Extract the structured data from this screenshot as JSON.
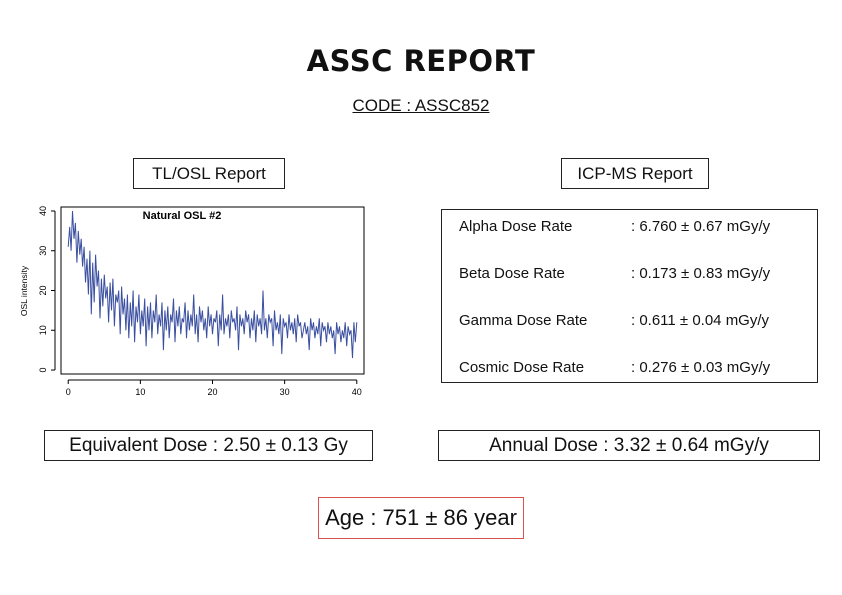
{
  "report": {
    "title": "ASSC REPORT",
    "code": "CODE : ASSC852"
  },
  "sections": {
    "tl_label": "TL/OSL Report",
    "icp_label": "ICP-MS Report"
  },
  "icp": {
    "rows": [
      {
        "label": "Alpha Dose Rate",
        "value": ": 6.760 ± 0.67 mGy/y"
      },
      {
        "label": "Beta Dose Rate",
        "value": ": 0.173 ± 0.83 mGy/y"
      },
      {
        "label": "Gamma Dose Rate",
        "value": ": 0.611 ± 0.04 mGy/y"
      },
      {
        "label": "Cosmic Dose Rate",
        "value": ": 0.276 ± 0.03 mGy/y"
      }
    ]
  },
  "results": {
    "equivalent_dose": "Equivalent Dose : 2.50 ± 0.13 Gy",
    "annual_dose": "Annual Dose : 3.32 ± 0.64 mGy/y",
    "age": "Age : 751 ± 86 year"
  },
  "colors": {
    "line": "#3a4fa0",
    "age_border": "#d9534f"
  },
  "chart_data": {
    "type": "line",
    "title": "Natural OSL #2",
    "xlabel": "",
    "ylabel": "OSL intensity",
    "xlim": [
      -1,
      41
    ],
    "ylim": [
      -1,
      41
    ],
    "xticks": [
      0,
      10,
      20,
      30,
      40
    ],
    "yticks": [
      0,
      10,
      20,
      30,
      40
    ],
    "grid": false,
    "series": [
      {
        "x": [
          0.0,
          0.2,
          0.4,
          0.6,
          0.8,
          1.0,
          1.2,
          1.4,
          1.6,
          1.8,
          2.0,
          2.2,
          2.4,
          2.6,
          2.8,
          3.0,
          3.2,
          3.4,
          3.6,
          3.8,
          4.0,
          4.2,
          4.4,
          4.6,
          4.8,
          5.0,
          5.2,
          5.4,
          5.6,
          5.8,
          6.0,
          6.2,
          6.4,
          6.6,
          6.8,
          7.0,
          7.2,
          7.4,
          7.6,
          7.8,
          8.0,
          8.2,
          8.4,
          8.6,
          8.8,
          9.0,
          9.2,
          9.4,
          9.6,
          9.8,
          10.0,
          10.2,
          10.4,
          10.6,
          10.8,
          11.0,
          11.2,
          11.4,
          11.6,
          11.8,
          12.0,
          12.2,
          12.4,
          12.6,
          12.8,
          13.0,
          13.2,
          13.4,
          13.6,
          13.8,
          14.0,
          14.2,
          14.4,
          14.6,
          14.8,
          15.0,
          15.2,
          15.4,
          15.6,
          15.8,
          16.0,
          16.2,
          16.4,
          16.6,
          16.8,
          17.0,
          17.2,
          17.4,
          17.6,
          17.8,
          18.0,
          18.2,
          18.4,
          18.6,
          18.8,
          19.0,
          19.2,
          19.4,
          19.6,
          19.8,
          20.0,
          20.2,
          20.4,
          20.6,
          20.8,
          21.0,
          21.2,
          21.4,
          21.6,
          21.8,
          22.0,
          22.2,
          22.4,
          22.6,
          22.8,
          23.0,
          23.2,
          23.4,
          23.6,
          23.8,
          24.0,
          24.2,
          24.4,
          24.6,
          24.8,
          25.0,
          25.2,
          25.4,
          25.6,
          25.8,
          26.0,
          26.2,
          26.4,
          26.6,
          26.8,
          27.0,
          27.2,
          27.4,
          27.6,
          27.8,
          28.0,
          28.2,
          28.4,
          28.6,
          28.8,
          29.0,
          29.2,
          29.4,
          29.6,
          29.8,
          30.0,
          30.2,
          30.4,
          30.6,
          30.8,
          31.0,
          31.2,
          31.4,
          31.6,
          31.8,
          32.0,
          32.2,
          32.4,
          32.6,
          32.8,
          33.0,
          33.2,
          33.4,
          33.6,
          33.8,
          34.0,
          34.2,
          34.4,
          34.6,
          34.8,
          35.0,
          35.2,
          35.4,
          35.6,
          35.8,
          36.0,
          36.2,
          36.4,
          36.6,
          36.8,
          37.0,
          37.2,
          37.4,
          37.6,
          37.8,
          38.0,
          38.2,
          38.4,
          38.6,
          38.8,
          39.0,
          39.2,
          39.4,
          39.6,
          39.8,
          40.0
        ],
        "y": [
          31,
          36,
          30,
          40,
          33,
          37,
          27,
          35,
          29,
          33,
          26,
          31,
          22,
          28,
          19,
          30,
          14,
          27,
          17,
          29,
          21,
          25,
          13,
          23,
          16,
          24,
          18,
          21,
          12,
          22,
          15,
          23,
          11,
          19,
          17,
          20,
          9,
          21,
          14,
          18,
          10,
          19,
          8,
          17,
          11,
          20,
          7,
          16,
          12,
          19,
          9,
          15,
          11,
          18,
          6,
          16,
          10,
          17,
          8,
          15,
          12,
          19,
          9,
          14,
          11,
          17,
          5,
          15,
          10,
          16,
          8,
          14,
          12,
          18,
          7,
          15,
          11,
          16,
          9,
          13,
          12,
          17,
          8,
          15,
          10,
          14,
          11,
          19,
          9,
          14,
          7,
          16,
          12,
          15,
          10,
          13,
          8,
          16,
          11,
          14,
          9,
          13,
          12,
          15,
          6,
          14,
          10,
          19,
          9,
          13,
          11,
          14,
          8,
          15,
          12,
          13,
          10,
          16,
          5,
          14,
          11,
          13,
          9,
          15,
          12,
          14,
          8,
          13,
          10,
          15,
          7,
          14,
          11,
          13,
          9,
          20,
          10,
          13,
          8,
          14,
          12,
          13,
          6,
          15,
          10,
          12,
          9,
          14,
          4,
          13,
          11,
          12,
          8,
          14,
          10,
          12,
          9,
          13,
          7,
          14,
          11,
          12,
          8,
          10,
          12,
          9,
          11,
          5,
          13,
          10,
          12,
          8,
          11,
          9,
          13,
          6,
          12,
          10,
          11,
          7,
          12,
          9,
          11,
          8,
          10,
          4,
          12,
          9,
          11,
          7,
          10,
          8,
          12,
          6,
          11,
          9,
          10,
          3,
          12,
          7,
          12
        ]
      }
    ]
  }
}
